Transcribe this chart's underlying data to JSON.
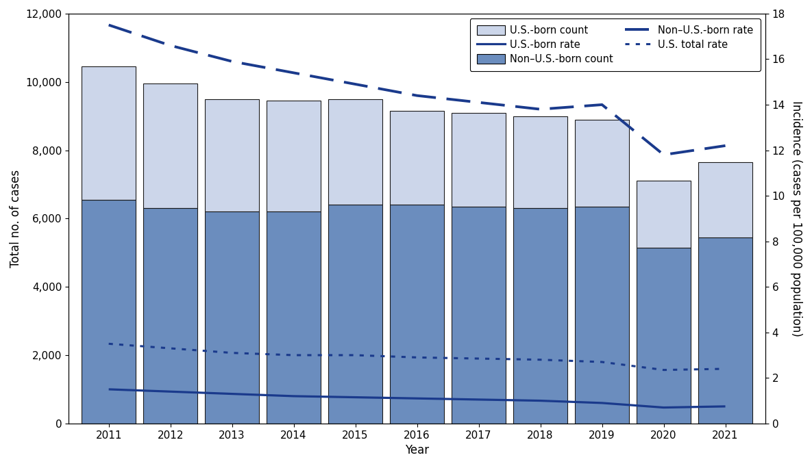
{
  "years": [
    2011,
    2012,
    2013,
    2014,
    2015,
    2016,
    2017,
    2018,
    2019,
    2020,
    2021
  ],
  "non_us_born_count": [
    6550,
    6300,
    6200,
    6200,
    6400,
    6400,
    6350,
    6300,
    6350,
    5150,
    5450
  ],
  "total_counts": [
    10450,
    9950,
    9500,
    9450,
    9500,
    9150,
    9100,
    9000,
    8900,
    7100,
    7650
  ],
  "us_born_rate": [
    1.5,
    1.4,
    1.3,
    1.2,
    1.15,
    1.1,
    1.05,
    1.0,
    0.9,
    0.7,
    0.75
  ],
  "non_us_born_rate": [
    17.5,
    16.6,
    15.9,
    15.4,
    14.9,
    14.4,
    14.1,
    13.8,
    14.0,
    11.8,
    12.2
  ],
  "us_total_rate": [
    3.5,
    3.3,
    3.1,
    3.0,
    3.0,
    2.9,
    2.85,
    2.8,
    2.7,
    2.35,
    2.4
  ],
  "color_us_born_bar": "#ccd6ea",
  "color_non_us_born_bar": "#6b8dbe",
  "color_line": "#1a3a8c",
  "bar_width": 0.88,
  "ylim_left": [
    0,
    12000
  ],
  "ylim_right": [
    0,
    18
  ],
  "yticks_left": [
    0,
    2000,
    4000,
    6000,
    8000,
    10000,
    12000
  ],
  "ytick_labels_left": [
    "0",
    "2,000",
    "4,000",
    "6,000",
    "8,000",
    "10,000",
    "12,000"
  ],
  "yticks_right": [
    0,
    2,
    4,
    6,
    8,
    10,
    12,
    14,
    16,
    18
  ],
  "ytick_labels_right": [
    "0",
    "2",
    "4",
    "6",
    "8",
    "10",
    "12",
    "14",
    "16",
    "18"
  ],
  "xlabel": "Year",
  "ylabel_left": "Total no. of cases",
  "ylabel_right": "Incidence (cases per 100,000 population)",
  "legend_labels": [
    "U.S.-born count",
    "Non–U.S.-born count",
    "U.S.-born rate",
    "Non–U.S.-born rate",
    "U.S. total rate"
  ]
}
